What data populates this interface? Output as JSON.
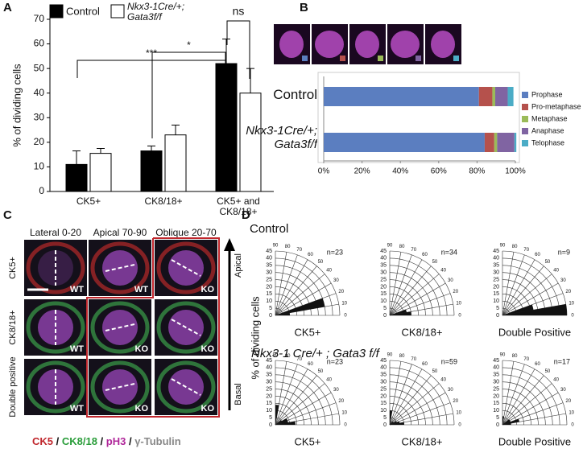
{
  "panel_letters": [
    "A",
    "B",
    "C",
    "D"
  ],
  "C": {
    "columns": [
      "Lateral 0-20",
      "Apical 70-90",
      "Oblique 20-70"
    ],
    "rows": [
      "CK5+",
      "CK8/18+",
      "Double positive"
    ],
    "cells": [
      [
        "WT",
        "WT",
        "KO"
      ],
      [
        "WT",
        "KO",
        "KO"
      ],
      [
        "WT",
        "KO",
        "KO"
      ]
    ],
    "arrow": [
      "Apical",
      "Basal"
    ],
    "legend": [
      "CK5",
      "CK8/18",
      "pH3",
      "γ-Tubulin"
    ],
    "legend_colors": [
      "#c0272d",
      "#2a9d3a",
      "#b0279a",
      "#888888"
    ],
    "legend_separator": " / "
  },
  "D": {
    "headers": [
      "Control",
      "Nkx3-1 Cre/+ ; Gata3 f/f"
    ],
    "y_label": "% of dividing cells"
  },
  "chart_data": [
    {
      "type": "bar",
      "y_label": "% of dividing cells",
      "categories": [
        "CK5+",
        "CK8/18+",
        "CK5+ and CK8/18+"
      ],
      "series": [
        {
          "name": "Control",
          "color": "#000000",
          "values": [
            11,
            16.5,
            52
          ],
          "errors": [
            5.5,
            2,
            10
          ]
        },
        {
          "name": "Nkx3-1Cre/+; Gata3f/f",
          "color": "#ffffff",
          "values": [
            15.5,
            23,
            40
          ],
          "errors": [
            2,
            4,
            10
          ]
        }
      ],
      "annotations": [
        "***",
        "*",
        "ns"
      ],
      "ylim": [
        0,
        70
      ],
      "yticks": [
        0,
        10,
        20,
        30,
        40,
        50,
        60,
        70
      ]
    },
    {
      "type": "stacked-hbar",
      "categories": [
        "Control",
        "Nkx3-1Cre/+; Gata3f/f"
      ],
      "series": [
        {
          "name": "Prophase",
          "color": "#5b7ec0",
          "values": [
            81,
            84
          ]
        },
        {
          "name": "Pro-metaphase",
          "color": "#b5514c",
          "values": [
            7,
            5
          ]
        },
        {
          "name": "Metaphase",
          "color": "#9bbb59",
          "values": [
            1.5,
            1.5
          ]
        },
        {
          "name": "Anaphase",
          "color": "#8064a2",
          "values": [
            6.5,
            9
          ]
        },
        {
          "name": "Telophase",
          "color": "#4bacc6",
          "values": [
            3,
            1
          ]
        }
      ],
      "xlim": [
        0,
        100
      ],
      "xticks": [
        {
          "value": 0,
          "label": "0%"
        },
        {
          "value": 20,
          "label": "20%"
        },
        {
          "value": 40,
          "label": "40%"
        },
        {
          "value": 60,
          "label": "60%"
        },
        {
          "value": 80,
          "label": "80%"
        },
        {
          "value": 100,
          "label": "100%"
        }
      ]
    },
    {
      "type": "polar",
      "title": "CK5+",
      "annotation": "n=23",
      "theta_bins": [
        0,
        10,
        20,
        30,
        40,
        50,
        60,
        70,
        80,
        90
      ],
      "values": [
        10,
        35,
        0,
        0,
        0,
        0,
        0,
        0,
        0
      ],
      "rlim": [
        0,
        45
      ],
      "rticks": [
        0,
        5,
        10,
        15,
        20,
        25,
        30,
        35,
        40,
        45
      ],
      "thetaticks": [
        0,
        10,
        20,
        30,
        40,
        50,
        60,
        70,
        80,
        90
      ],
      "color": "#111111"
    },
    {
      "type": "polar",
      "title": "CK8/18+",
      "annotation": "n=34",
      "theta_bins": [
        0,
        10,
        20,
        30,
        40,
        50,
        60,
        70,
        80,
        90
      ],
      "values": [
        15,
        12,
        0,
        0,
        0,
        0,
        0,
        0,
        0
      ],
      "rlim": [
        0,
        45
      ],
      "rticks": [
        0,
        5,
        10,
        15,
        20,
        25,
        30,
        35,
        40,
        45
      ],
      "thetaticks": [
        0,
        10,
        20,
        30,
        40,
        50,
        60,
        70,
        80,
        90
      ],
      "color": "#111111"
    },
    {
      "type": "polar",
      "title": "Double Positive",
      "annotation": "n=9",
      "theta_bins": [
        0,
        10,
        20,
        30,
        40,
        50,
        60,
        70,
        80,
        90
      ],
      "values": [
        45,
        22,
        0,
        0,
        0,
        0,
        0,
        0,
        0
      ],
      "rlim": [
        0,
        45
      ],
      "rticks": [
        0,
        5,
        10,
        15,
        20,
        25,
        30,
        35,
        40,
        45
      ],
      "thetaticks": [
        0,
        10,
        20,
        30,
        40,
        50,
        60,
        70,
        80,
        90
      ],
      "color": "#111111"
    },
    {
      "type": "polar",
      "title": "CK5+",
      "annotation": "n=23",
      "theta_bins": [
        0,
        10,
        20,
        30,
        40,
        50,
        60,
        70,
        80,
        90
      ],
      "values": [
        14,
        9,
        9,
        5,
        0,
        0,
        0,
        0,
        14
      ],
      "rlim": [
        0,
        45
      ],
      "rticks": [
        0,
        5,
        10,
        15,
        20,
        25,
        30,
        35,
        40,
        45
      ],
      "thetaticks": [
        0,
        10,
        20,
        30,
        40,
        50,
        60,
        70,
        80,
        90
      ],
      "color": "#111111"
    },
    {
      "type": "polar",
      "title": "CK8/18+",
      "annotation": "n=59",
      "theta_bins": [
        0,
        10,
        20,
        30,
        40,
        50,
        60,
        70,
        80,
        90
      ],
      "values": [
        10,
        7,
        5,
        3,
        3,
        0,
        0,
        0,
        10
      ],
      "rlim": [
        0,
        45
      ],
      "rticks": [
        0,
        5,
        10,
        15,
        20,
        25,
        30,
        35,
        40,
        45
      ],
      "thetaticks": [
        0,
        10,
        20,
        30,
        40,
        50,
        60,
        70,
        80,
        90
      ],
      "color": "#111111"
    },
    {
      "type": "polar",
      "title": "Double Positive",
      "annotation": "n=17",
      "theta_bins": [
        0,
        10,
        20,
        30,
        40,
        50,
        60,
        70,
        80,
        90
      ],
      "values": [
        6,
        12,
        6,
        6,
        0,
        0,
        0,
        0,
        6
      ],
      "rlim": [
        0,
        45
      ],
      "rticks": [
        0,
        5,
        10,
        15,
        20,
        25,
        30,
        35,
        40,
        45
      ],
      "thetaticks": [
        0,
        10,
        20,
        30,
        40,
        50,
        60,
        70,
        80,
        90
      ],
      "color": "#111111"
    }
  ]
}
